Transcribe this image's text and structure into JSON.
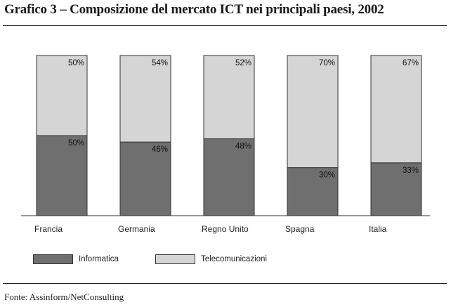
{
  "title": "Grafico 3 – Composizione del mercato ICT nei principali paesi, 2002",
  "source": "Fonte: Assinform/NetConsulting",
  "colors": {
    "informatica": "#6f6f6f",
    "telecomunicazioni": "#d5d5d5",
    "outline": "#333333"
  },
  "chart_data": {
    "type": "bar",
    "stacked": true,
    "categories": [
      "Francia",
      "Germania",
      "Regno Unito",
      "Spagna",
      "Italia"
    ],
    "series": [
      {
        "name": "Informatica",
        "values": [
          50,
          46,
          48,
          30,
          33
        ]
      },
      {
        "name": "Telecomunicazioni",
        "values": [
          50,
          54,
          52,
          70,
          67
        ]
      }
    ],
    "data_labels": {
      "Informatica": [
        "50%",
        "46%",
        "48%",
        "30%",
        "33%"
      ],
      "Telecomunicazioni": [
        "50%",
        "54%",
        "52%",
        "70%",
        "67%"
      ]
    },
    "ylim": [
      0,
      100
    ],
    "grid": false,
    "legend_position": "bottom-left"
  },
  "legend": {
    "informatica": "Informatica",
    "telecomunicazioni": "Telecomunicazioni"
  }
}
